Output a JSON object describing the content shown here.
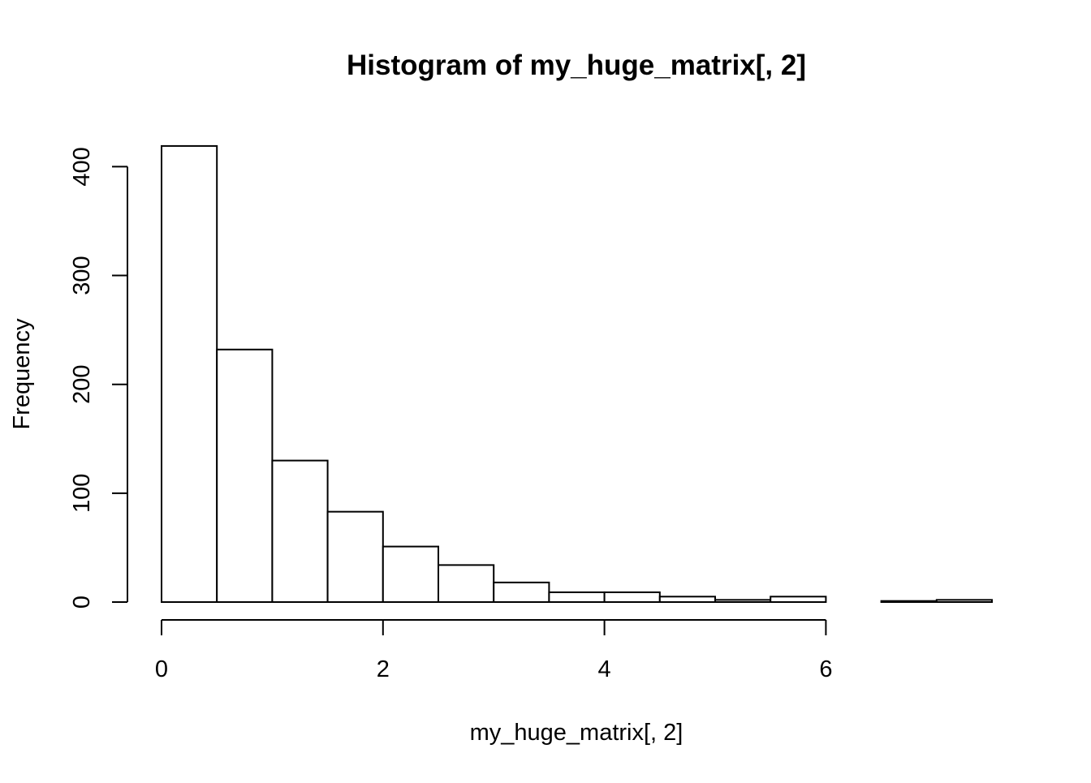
{
  "chart_data": {
    "type": "bar",
    "subtype": "histogram",
    "title": "Histogram of my_huge_matrix[, 2]",
    "xlabel": "my_huge_matrix[, 2]",
    "ylabel": "Frequency",
    "bin_edges": [
      0,
      0.5,
      1,
      1.5,
      2,
      2.5,
      3,
      3.5,
      4,
      4.5,
      5,
      5.5,
      6,
      6.5,
      7,
      7.5
    ],
    "values": [
      419,
      232,
      130,
      83,
      51,
      34,
      18,
      9,
      9,
      5,
      2,
      5,
      0,
      1,
      2
    ],
    "xlim": [
      0,
      7.5
    ],
    "ylim": [
      0,
      420
    ],
    "x_ticks": [
      "0",
      "2",
      "4",
      "6"
    ],
    "y_ticks": [
      "0",
      "100",
      "200",
      "300",
      "400"
    ],
    "grid": false,
    "legend": "none"
  }
}
